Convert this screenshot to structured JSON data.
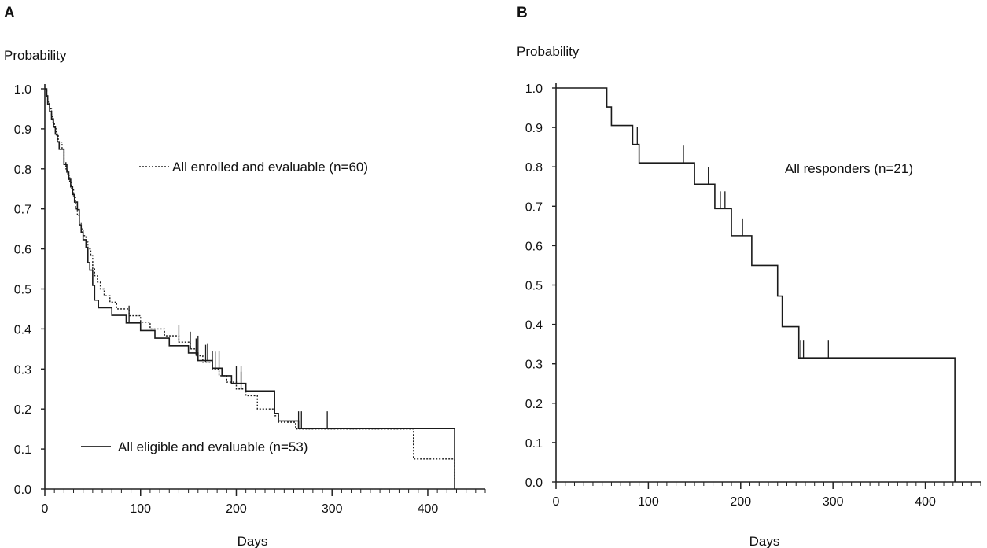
{
  "chart_data": [
    {
      "panel": "A",
      "type": "line",
      "step": true,
      "ylabel": "Probability",
      "xlabel": "Days",
      "xlim": [
        0,
        460
      ],
      "ylim": [
        0,
        1.0
      ],
      "xticks": [
        0,
        100,
        200,
        300,
        400
      ],
      "yticks": [
        "0.0",
        "0.1",
        "0.2",
        "0.3",
        "0.4",
        "0.5",
        "0.6",
        "0.7",
        "0.8",
        "0.9",
        "1.0"
      ],
      "series": [
        {
          "name": "All enrolled and evaluable (n=60)",
          "style": "dotted",
          "x": [
            0,
            2,
            3,
            5,
            7,
            8,
            10,
            12,
            14,
            18,
            20,
            22,
            24,
            26,
            28,
            30,
            32,
            34,
            36,
            38,
            40,
            43,
            45,
            48,
            50,
            52,
            55,
            58,
            62,
            68,
            75,
            88,
            100,
            110,
            125,
            140,
            152,
            158,
            165,
            175,
            182,
            190,
            200,
            210,
            215,
            222,
            240,
            244,
            262,
            267,
            385,
            428
          ],
          "y": [
            1.0,
            0.983,
            0.967,
            0.95,
            0.933,
            0.917,
            0.9,
            0.883,
            0.867,
            0.85,
            0.817,
            0.8,
            0.783,
            0.767,
            0.75,
            0.733,
            0.7,
            0.683,
            0.667,
            0.65,
            0.633,
            0.617,
            0.6,
            0.583,
            0.55,
            0.533,
            0.517,
            0.5,
            0.483,
            0.467,
            0.45,
            0.433,
            0.417,
            0.4,
            0.383,
            0.367,
            0.35,
            0.333,
            0.317,
            0.3,
            0.283,
            0.267,
            0.25,
            0.233,
            0.233,
            0.2,
            0.183,
            0.167,
            0.15,
            0.15,
            0.075,
            0.025
          ],
          "censor_x": [
            140,
            152,
            158,
            168,
            178,
            205
          ],
          "censor_y": [
            0.367,
            0.35,
            0.333,
            0.317,
            0.3,
            0.25
          ]
        },
        {
          "name": "All eligible and evaluable (n=53)",
          "style": "solid",
          "x": [
            0,
            2,
            3,
            5,
            7,
            9,
            11,
            13,
            15,
            20,
            23,
            25,
            27,
            29,
            31,
            34,
            36,
            38,
            40,
            43,
            45,
            47,
            50,
            52,
            56,
            70,
            85,
            100,
            115,
            130,
            150,
            160,
            175,
            185,
            195,
            210,
            240,
            244,
            265,
            428
          ],
          "y": [
            1.0,
            0.981,
            0.962,
            0.943,
            0.925,
            0.906,
            0.887,
            0.868,
            0.849,
            0.811,
            0.792,
            0.774,
            0.755,
            0.736,
            0.717,
            0.698,
            0.66,
            0.642,
            0.623,
            0.604,
            0.566,
            0.547,
            0.509,
            0.472,
            0.453,
            0.434,
            0.415,
            0.396,
            0.377,
            0.358,
            0.34,
            0.321,
            0.302,
            0.283,
            0.264,
            0.245,
            0.189,
            0.17,
            0.151,
            0.0
          ],
          "censor_x": [
            88,
            160,
            170,
            175,
            182,
            200,
            205,
            265,
            268,
            295
          ],
          "censor_y": [
            0.415,
            0.34,
            0.321,
            0.302,
            0.302,
            0.264,
            0.264,
            0.151,
            0.151,
            0.151
          ]
        }
      ]
    },
    {
      "panel": "B",
      "type": "line",
      "step": true,
      "ylabel": "Probability",
      "xlabel": "Days",
      "xlim": [
        0,
        460
      ],
      "ylim": [
        0,
        1.0
      ],
      "xticks": [
        0,
        100,
        200,
        300,
        400
      ],
      "yticks": [
        "0.0",
        "0.1",
        "0.2",
        "0.3",
        "0.4",
        "0.5",
        "0.6",
        "0.7",
        "0.8",
        "0.9",
        "1.0"
      ],
      "series": [
        {
          "name": "All responders (n=21)",
          "style": "solid",
          "x": [
            0,
            55,
            60,
            83,
            90,
            150,
            172,
            190,
            212,
            240,
            245,
            263,
            432
          ],
          "y": [
            1.0,
            0.952,
            0.905,
            0.857,
            0.81,
            0.756,
            0.694,
            0.625,
            0.55,
            0.472,
            0.394,
            0.315,
            0.0
          ],
          "censor_x": [
            88,
            138,
            165,
            178,
            183,
            202,
            265,
            268,
            295
          ],
          "censor_y": [
            0.857,
            0.81,
            0.756,
            0.694,
            0.694,
            0.625,
            0.315,
            0.315,
            0.315
          ]
        }
      ]
    }
  ]
}
